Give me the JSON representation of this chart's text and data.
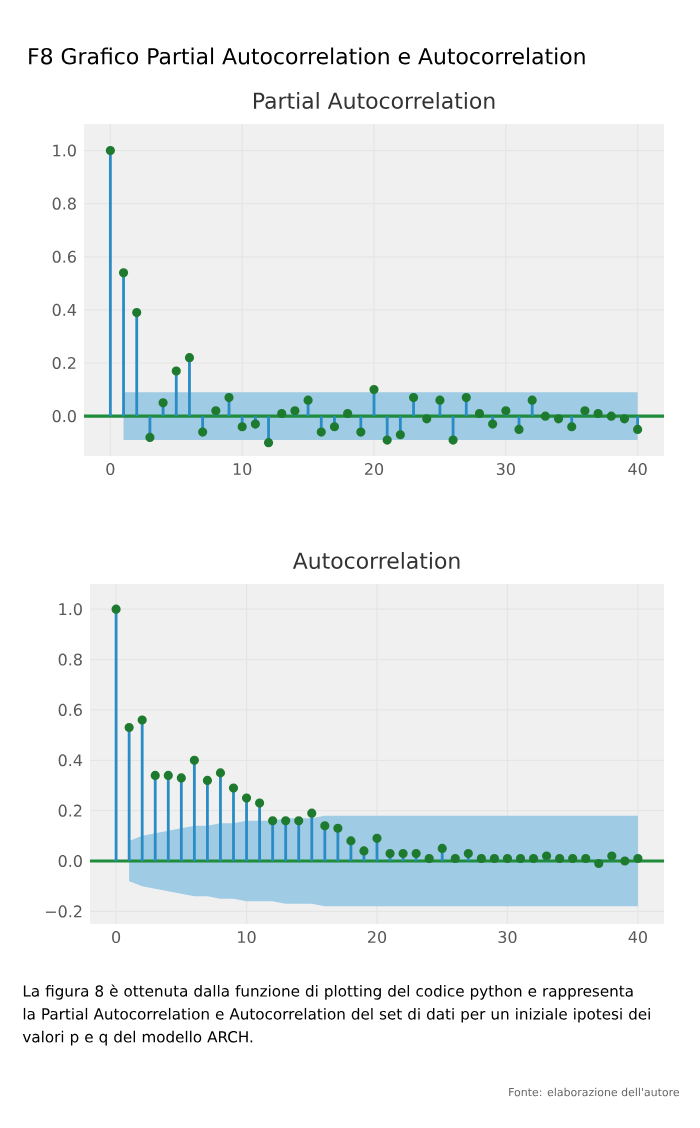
{
  "chart_data": [
    {
      "type": "lollipop",
      "title": "F8 Grafico Partial Autocorrelation e Autocorrelation",
      "subtitle": "Partial Autocorrelation",
      "x": [
        0,
        1,
        2,
        3,
        4,
        5,
        6,
        7,
        8,
        9,
        10,
        11,
        12,
        13,
        14,
        15,
        16,
        17,
        18,
        19,
        20,
        21,
        22,
        23,
        24,
        25,
        26,
        27,
        28,
        29,
        30,
        31,
        32,
        33,
        34,
        35,
        36,
        37,
        38,
        39,
        40
      ],
      "series": [
        {
          "color": "#1e7a2e",
          "values": [
            1.0,
            0.54,
            0.39,
            -0.08,
            0.05,
            0.17,
            0.22,
            -0.06,
            0.02,
            0.07,
            -0.04,
            -0.03,
            -0.1,
            0.01,
            0.02,
            0.06,
            -0.06,
            -0.04,
            0.01,
            -0.06,
            0.1,
            -0.09,
            -0.07,
            0.07,
            -0.01,
            0.06,
            -0.09,
            0.07,
            0.01,
            -0.03,
            0.02,
            -0.05,
            0.06,
            0.0,
            -0.01,
            -0.04,
            0.02,
            0.01,
            0.0,
            -0.01,
            -0.05
          ],
          "lower": [
            null,
            -0.09,
            -0.09,
            -0.09,
            -0.09,
            -0.09,
            -0.09,
            -0.09,
            -0.09,
            -0.09,
            -0.09,
            -0.09,
            -0.09,
            -0.09,
            -0.09,
            -0.09,
            -0.09,
            -0.09,
            -0.09,
            -0.09,
            -0.09,
            -0.09,
            -0.09,
            -0.09,
            -0.09,
            -0.09,
            -0.09,
            -0.09,
            -0.09,
            -0.09,
            -0.09,
            -0.09,
            -0.09,
            -0.09,
            -0.09,
            -0.09,
            -0.09,
            -0.09,
            -0.09,
            -0.09,
            -0.09
          ],
          "upper": [
            null,
            0.09,
            0.09,
            0.09,
            0.09,
            0.09,
            0.09,
            0.09,
            0.09,
            0.09,
            0.09,
            0.09,
            0.09,
            0.09,
            0.09,
            0.09,
            0.09,
            0.09,
            0.09,
            0.09,
            0.09,
            0.09,
            0.09,
            0.09,
            0.09,
            0.09,
            0.09,
            0.09,
            0.09,
            0.09,
            0.09,
            0.09,
            0.09,
            0.09,
            0.09,
            0.09,
            0.09,
            0.09,
            0.09,
            0.09,
            0.09
          ]
        }
      ],
      "xlim": [
        -2,
        42
      ],
      "ylim": [
        -0.15,
        1.1
      ],
      "xticks": [
        0,
        10,
        20,
        30,
        40
      ],
      "yticks": [
        {
          "value": 0,
          "label": "0.0"
        },
        {
          "value": 0.2,
          "label": "0.2"
        },
        {
          "value": 0.4,
          "label": "0.4"
        },
        {
          "value": 0.6,
          "label": "0.6"
        },
        {
          "value": 0.8,
          "label": "0.8"
        },
        {
          "value": 1.0,
          "label": "1.0"
        }
      ],
      "grid": true,
      "marker": "circle",
      "ref_lines": [
        {
          "axis": "y",
          "value": 0,
          "color": "#1e8c3a"
        }
      ]
    },
    {
      "type": "lollipop",
      "subtitle": "Autocorrelation",
      "x": [
        0,
        1,
        2,
        3,
        4,
        5,
        6,
        7,
        8,
        9,
        10,
        11,
        12,
        13,
        14,
        15,
        16,
        17,
        18,
        19,
        20,
        21,
        22,
        23,
        24,
        25,
        26,
        27,
        28,
        29,
        30,
        31,
        32,
        33,
        34,
        35,
        36,
        37,
        38,
        39,
        40
      ],
      "series": [
        {
          "color": "#1e7a2e",
          "values": [
            1.0,
            0.53,
            0.56,
            0.34,
            0.34,
            0.33,
            0.4,
            0.32,
            0.35,
            0.29,
            0.25,
            0.23,
            0.16,
            0.16,
            0.16,
            0.19,
            0.14,
            0.13,
            0.08,
            0.04,
            0.09,
            0.03,
            0.03,
            0.03,
            0.01,
            0.05,
            0.01,
            0.03,
            0.01,
            0.01,
            0.01,
            0.01,
            0.01,
            0.02,
            0.01,
            0.01,
            0.01,
            -0.01,
            0.02,
            0.0,
            0.01
          ],
          "lower": [
            null,
            -0.08,
            -0.1,
            -0.11,
            -0.12,
            -0.13,
            -0.14,
            -0.14,
            -0.15,
            -0.15,
            -0.16,
            -0.16,
            -0.16,
            -0.17,
            -0.17,
            -0.17,
            -0.18,
            -0.18,
            -0.18,
            -0.18,
            -0.18,
            -0.18,
            -0.18,
            -0.18,
            -0.18,
            -0.18,
            -0.18,
            -0.18,
            -0.18,
            -0.18,
            -0.18,
            -0.18,
            -0.18,
            -0.18,
            -0.18,
            -0.18,
            -0.18,
            -0.18,
            -0.18,
            -0.18,
            -0.18
          ],
          "upper": [
            null,
            0.08,
            0.1,
            0.11,
            0.12,
            0.13,
            0.14,
            0.14,
            0.15,
            0.15,
            0.16,
            0.16,
            0.16,
            0.17,
            0.17,
            0.17,
            0.18,
            0.18,
            0.18,
            0.18,
            0.18,
            0.18,
            0.18,
            0.18,
            0.18,
            0.18,
            0.18,
            0.18,
            0.18,
            0.18,
            0.18,
            0.18,
            0.18,
            0.18,
            0.18,
            0.18,
            0.18,
            0.18,
            0.18,
            0.18,
            0.18
          ]
        }
      ],
      "xlim": [
        -2,
        42
      ],
      "ylim": [
        -0.25,
        1.1
      ],
      "xticks": [
        0,
        10,
        20,
        30,
        40
      ],
      "yticks": [
        {
          "value": -0.2,
          "label": "−0.2"
        },
        {
          "value": 0,
          "label": "0.0"
        },
        {
          "value": 0.2,
          "label": "0.2"
        },
        {
          "value": 0.4,
          "label": "0.4"
        },
        {
          "value": 0.6,
          "label": "0.6"
        },
        {
          "value": 0.8,
          "label": "0.8"
        },
        {
          "value": 1.0,
          "label": "1.0"
        }
      ],
      "grid": true,
      "marker": "circle",
      "ref_lines": [
        {
          "axis": "y",
          "value": 0,
          "color": "#1e8c3a"
        }
      ],
      "annotations": [
        "La figura 8 è ottenuta dalla funzione di plotting del codice python e rappresenta la Partial Autocorrelation e Autocorrelation del set di dati per un iniziale ipotesi dei valori p e q del modello ARCH.",
        "Fonte: elaborazione dell'autore"
      ]
    }
  ]
}
